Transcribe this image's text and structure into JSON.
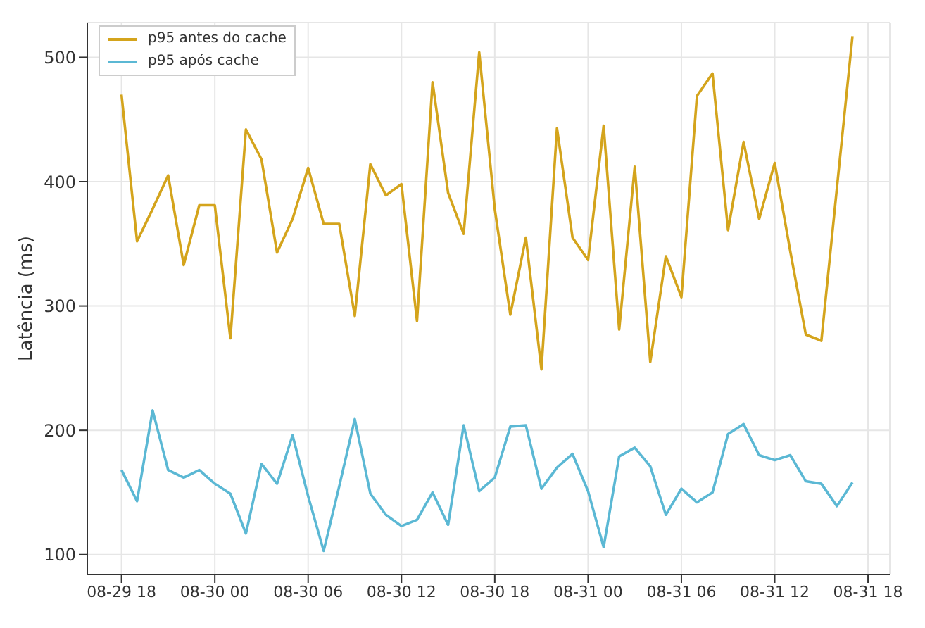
{
  "chart_data": {
    "type": "line",
    "ylabel": "Latência (ms)",
    "x": [
      "--08-29T18:00",
      "--08-29T19:00",
      "--08-29T20:00",
      "--08-29T21:00",
      "--08-29T22:00",
      "--08-29T23:00",
      "--08-30T00:00",
      "--08-30T01:00",
      "--08-30T02:00",
      "--08-30T03:00",
      "--08-30T04:00",
      "--08-30T05:00",
      "--08-30T06:00",
      "--08-30T07:00",
      "--08-30T08:00",
      "--08-30T09:00",
      "--08-30T10:00",
      "--08-30T11:00",
      "--08-30T12:00",
      "--08-30T13:00",
      "--08-30T14:00",
      "--08-30T15:00",
      "--08-30T16:00",
      "--08-30T17:00",
      "--08-30T18:00",
      "--08-30T19:00",
      "--08-30T20:00",
      "--08-30T21:00",
      "--08-30T22:00",
      "--08-30T23:00",
      "--08-31T00:00",
      "--08-31T01:00",
      "--08-31T02:00",
      "--08-31T03:00",
      "--08-31T04:00",
      "--08-31T05:00",
      "--08-31T06:00",
      "--08-31T07:00",
      "--08-31T08:00",
      "--08-31T09:00",
      "--08-31T10:00",
      "--08-31T11:00",
      "--08-31T12:00",
      "--08-31T13:00",
      "--08-31T14:00",
      "--08-31T15:00",
      "--08-31T16:00",
      "--08-31T17:00"
    ],
    "series": [
      {
        "name": "p95 antes do cache",
        "color": "#d4a41c",
        "values": [
          470,
          352,
          378,
          405,
          333,
          381,
          381,
          274,
          442,
          418,
          343,
          370,
          411,
          366,
          366,
          292,
          414,
          389,
          398,
          288,
          480,
          391,
          358,
          504,
          378,
          293,
          355,
          249,
          443,
          355,
          337,
          445,
          281,
          412,
          255,
          340,
          307,
          469,
          487,
          361,
          432,
          370,
          415,
          344,
          277,
          272,
          395,
          517
        ]
      },
      {
        "name": "p95 após cache",
        "color": "#5bb8d4",
        "values": [
          168,
          143,
          216,
          168,
          162,
          168,
          157,
          149,
          117,
          173,
          157,
          196,
          147,
          103,
          155,
          209,
          149,
          132,
          123,
          128,
          150,
          124,
          204,
          151,
          162,
          203,
          204,
          153,
          170,
          181,
          151,
          106,
          179,
          186,
          171,
          132,
          153,
          142,
          150,
          197,
          205,
          180,
          176,
          180,
          159,
          157,
          139,
          158
        ]
      }
    ],
    "xlim": [
      "--08-29T15:48",
      "--08-31T19:24"
    ],
    "xticks": [
      {
        "value": "--08-29T18:00",
        "label": "08-29 18"
      },
      {
        "value": "--08-30T00:00",
        "label": "08-30 00"
      },
      {
        "value": "--08-30T06:00",
        "label": "08-30 06"
      },
      {
        "value": "--08-30T12:00",
        "label": "08-30 12"
      },
      {
        "value": "--08-30T18:00",
        "label": "08-30 18"
      },
      {
        "value": "--08-31T00:00",
        "label": "08-31 00"
      },
      {
        "value": "--08-31T06:00",
        "label": "08-31 06"
      },
      {
        "value": "--08-31T12:00",
        "label": "08-31 12"
      },
      {
        "value": "--08-31T18:00",
        "label": "08-31 18"
      }
    ],
    "ylim": [
      84,
      528
    ],
    "yticks": [
      100,
      200,
      300,
      400,
      500
    ],
    "grid": true,
    "legend": "top left",
    "marker": "none",
    "line_style": "solid"
  }
}
